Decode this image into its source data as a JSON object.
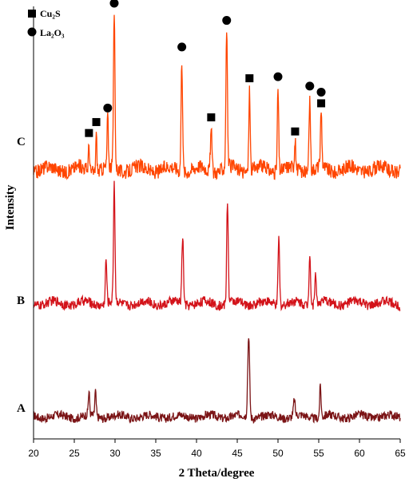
{
  "chart_data": {
    "type": "line",
    "xlabel": "2 Theta/degree",
    "ylabel": "Intensity",
    "xlim": [
      20,
      65
    ],
    "x_ticks": [
      "20",
      "25",
      "30",
      "35",
      "40",
      "45",
      "50",
      "55",
      "60",
      "65"
    ],
    "y_ticks_shown": false,
    "legend": {
      "placement": "top-left",
      "entries": [
        {
          "label": "Cu₂S",
          "marker": "square"
        },
        {
          "label": "La₂O₃",
          "marker": "circle"
        }
      ]
    },
    "series": [
      {
        "name": "A",
        "color": "#7b1416",
        "noise": 0.045,
        "peaks": [
          {
            "x": 26.8,
            "h": 0.24,
            "w": 0.12
          },
          {
            "x": 27.6,
            "h": 0.26,
            "w": 0.12
          },
          {
            "x": 46.4,
            "h": 0.86,
            "w": 0.16
          },
          {
            "x": 52.0,
            "h": 0.17,
            "w": 0.14
          },
          {
            "x": 55.2,
            "h": 0.33,
            "w": 0.12
          }
        ]
      },
      {
        "name": "B",
        "color": "#d3131a",
        "noise": 0.04,
        "peaks": [
          {
            "x": 28.9,
            "h": 0.37,
            "w": 0.13
          },
          {
            "x": 29.9,
            "h": 1.0,
            "w": 0.13
          },
          {
            "x": 38.3,
            "h": 0.56,
            "w": 0.14
          },
          {
            "x": 43.8,
            "h": 0.86,
            "w": 0.13
          },
          {
            "x": 50.1,
            "h": 0.57,
            "w": 0.13
          },
          {
            "x": 53.9,
            "h": 0.45,
            "w": 0.13
          },
          {
            "x": 54.6,
            "h": 0.29,
            "w": 0.12
          }
        ]
      },
      {
        "name": "C",
        "color": "#ff4500",
        "noise": 0.045,
        "peaks": [
          {
            "x": 26.8,
            "h": 0.17,
            "w": 0.1
          },
          {
            "x": 27.7,
            "h": 0.24,
            "w": 0.1
          },
          {
            "x": 29.1,
            "h": 0.33,
            "w": 0.11
          },
          {
            "x": 29.9,
            "h": 1.0,
            "w": 0.13
          },
          {
            "x": 38.2,
            "h": 0.72,
            "w": 0.13
          },
          {
            "x": 41.8,
            "h": 0.27,
            "w": 0.13
          },
          {
            "x": 43.7,
            "h": 0.89,
            "w": 0.13
          },
          {
            "x": 46.5,
            "h": 0.52,
            "w": 0.12
          },
          {
            "x": 50.0,
            "h": 0.53,
            "w": 0.12
          },
          {
            "x": 52.1,
            "h": 0.18,
            "w": 0.11
          },
          {
            "x": 53.9,
            "h": 0.47,
            "w": 0.12
          },
          {
            "x": 55.3,
            "h": 0.36,
            "w": 0.12
          }
        ]
      }
    ],
    "phase_markers": [
      {
        "x": 26.8,
        "phase": "Cu₂S",
        "shape": "square"
      },
      {
        "x": 27.7,
        "phase": "Cu₂S",
        "shape": "square"
      },
      {
        "x": 29.1,
        "phase": "La₂O₃",
        "shape": "circle"
      },
      {
        "x": 29.9,
        "phase": "La₂O₃",
        "shape": "circle"
      },
      {
        "x": 38.2,
        "phase": "La₂O₃",
        "shape": "circle"
      },
      {
        "x": 41.8,
        "phase": "Cu₂S",
        "shape": "square"
      },
      {
        "x": 43.7,
        "phase": "La₂O₃",
        "shape": "circle"
      },
      {
        "x": 46.5,
        "phase": "Cu₂S",
        "shape": "square"
      },
      {
        "x": 50.0,
        "phase": "La₂O₃",
        "shape": "circle"
      },
      {
        "x": 52.1,
        "phase": "Cu₂S",
        "shape": "square"
      },
      {
        "x": 53.9,
        "phase": "La₂O₃",
        "shape": "circle"
      },
      {
        "x": 55.3,
        "phase": "Cu₂S",
        "shape": "square"
      },
      {
        "x": 55.3,
        "phase": "La₂O₃",
        "shape": "circle"
      }
    ]
  }
}
